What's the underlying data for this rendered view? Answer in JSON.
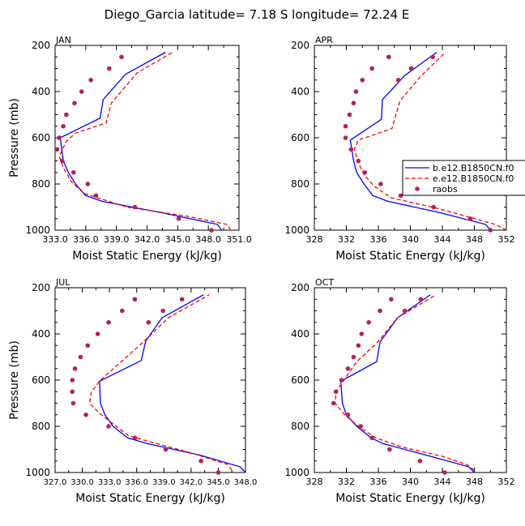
{
  "figure": {
    "title": "Diego_Garcia   latitude=  7.18 S  longitude=  72.24 E",
    "colors": {
      "model_b": "#0000ff",
      "model_e": "#ff0000",
      "obs": "#b2225a"
    }
  },
  "chart_data": [
    {
      "type": "line",
      "panel_label": "JAN",
      "xlabel": "Moist Static Energy (kJ/kg)",
      "ylabel": "Pressure (mb)",
      "xlim": [
        333.0,
        351.0
      ],
      "xticks": [
        333.0,
        336.0,
        339.0,
        342.0,
        345.0,
        348.0,
        351.0
      ],
      "xticklabels": [
        "333.0",
        "336.0",
        "339.0",
        "342.0",
        "345.0",
        "348.0",
        "351.0"
      ],
      "ylim": [
        200,
        1000
      ],
      "yticks": [
        200,
        400,
        600,
        800,
        1000
      ],
      "y_inverted": true,
      "series": [
        {
          "name": "b.e12.B1850CN.f0",
          "style": "solid",
          "color": "#0000ff",
          "x": [
            349.3,
            348.9,
            343.5,
            337.6,
            336.0,
            335.0,
            334.3,
            333.8,
            333.5,
            337.4,
            337.7,
            339.9,
            343.8
          ],
          "y": [
            1000,
            975,
            925,
            875,
            850,
            800,
            750,
            700,
            600,
            515,
            435,
            325,
            230
          ]
        },
        {
          "name": "e.e12.B1850CN.f0",
          "style": "dashed",
          "color": "#ff0000",
          "x": [
            350.2,
            349.8,
            346.0,
            340.0,
            335.8,
            334.6,
            333.8,
            333.4,
            334.1,
            335.0,
            338.0,
            338.5,
            341.0,
            344.5
          ],
          "y": [
            1000,
            975,
            940,
            900,
            840,
            790,
            730,
            680,
            615,
            580,
            535,
            450,
            320,
            230
          ]
        },
        {
          "name": "raobs",
          "style": "marker",
          "color": "#b2225a",
          "x": [
            348.3,
            345.1,
            340.8,
            337.0,
            336.2,
            334.8,
            333.7,
            333.2,
            333.4,
            333.8,
            334.1,
            334.9,
            335.6,
            336.5,
            338.3,
            339.5
          ],
          "y": [
            1000,
            950,
            900,
            850,
            800,
            750,
            700,
            650,
            600,
            550,
            500,
            450,
            400,
            350,
            300,
            250
          ]
        }
      ]
    },
    {
      "type": "line",
      "panel_label": "APR",
      "xlabel": "Moist Static Energy (kJ/kg)",
      "ylabel": "",
      "xlim": [
        328,
        352
      ],
      "xticks": [
        328,
        332,
        336,
        340,
        344,
        348,
        352
      ],
      "xticklabels": [
        "328",
        "332",
        "336",
        "340",
        "344",
        "348",
        "352"
      ],
      "ylim": [
        200,
        1000
      ],
      "yticks": [
        200,
        400,
        600,
        800,
        1000
      ],
      "y_inverted": true,
      "series": [
        {
          "name": "b.e12.B1850CN.f0",
          "style": "solid",
          "color": "#0000ff",
          "x": [
            350.0,
            349.4,
            343.8,
            337.2,
            335.3,
            334.2,
            333.3,
            332.9,
            332.5,
            336.4,
            336.5,
            339.3,
            343.3
          ],
          "y": [
            1000,
            975,
            925,
            875,
            850,
            800,
            750,
            700,
            610,
            520,
            435,
            330,
            230
          ]
        },
        {
          "name": "e.e12.B1850CN.f0",
          "style": "dashed",
          "color": "#ff0000",
          "x": [
            352.0,
            350.6,
            347.0,
            343.3,
            337.6,
            335.5,
            334.2,
            333.4,
            333.0,
            333.5,
            337.7,
            338.7,
            341.4,
            344.4
          ],
          "y": [
            1000,
            975,
            940,
            905,
            860,
            810,
            760,
            700,
            650,
            610,
            560,
            440,
            330,
            230
          ]
        },
        {
          "name": "raobs",
          "style": "marker",
          "color": "#b2225a",
          "x": [
            350.0,
            347.5,
            342.9,
            338.8,
            336.3,
            334.3,
            333.5,
            332.6,
            331.9,
            331.9,
            332.4,
            332.9,
            333.2,
            334.0,
            335.2,
            337.3,
            338.5,
            340.1,
            342.8
          ],
          "y": [
            1000,
            950,
            900,
            850,
            800,
            750,
            700,
            650,
            600,
            550,
            500,
            450,
            400,
            350,
            300,
            250,
            350,
            300,
            250
          ]
        }
      ]
    },
    {
      "type": "line",
      "panel_label": "JUL",
      "xlabel": "Moist Static Energy (kJ/kg)",
      "ylabel": "Pressure (mb)",
      "xlim": [
        327.0,
        348.0
      ],
      "xticks": [
        327.0,
        330.0,
        333.0,
        336.0,
        339.0,
        342.0,
        345.0,
        348.0
      ],
      "xticklabels": [
        "327.0",
        "330.0",
        "333.0",
        "336.0",
        "339.0",
        "342.0",
        "345.0",
        "348.0"
      ],
      "ylim": [
        200,
        1000
      ],
      "yticks": [
        200,
        400,
        600,
        800,
        1000
      ],
      "y_inverted": true,
      "series": [
        {
          "name": "b.e12.B1850CN.f0",
          "style": "solid",
          "color": "#0000ff",
          "x": [
            348.0,
            347.4,
            343.0,
            337.2,
            335.0,
            333.4,
            332.5,
            332.0,
            331.9,
            336.5,
            337.0,
            338.8,
            343.4
          ],
          "y": [
            1000,
            975,
            925,
            875,
            850,
            800,
            750,
            700,
            605,
            515,
            430,
            330,
            230
          ]
        },
        {
          "name": "e.e12.B1850CN.f0",
          "style": "dashed",
          "color": "#ff0000",
          "x": [
            346.5,
            346.0,
            342.0,
            337.3,
            335.1,
            333.4,
            331.8,
            330.8,
            331.0,
            332.0,
            336.6,
            339.5,
            344.0
          ],
          "y": [
            990,
            965,
            915,
            865,
            840,
            790,
            740,
            700,
            650,
            600,
            440,
            330,
            230
          ]
        },
        {
          "name": "raobs",
          "style": "marker",
          "color": "#b2225a",
          "x": [
            345.0,
            343.1,
            339.2,
            335.8,
            332.9,
            330.4,
            329.0,
            328.9,
            328.9,
            329.2,
            329.8,
            330.6,
            331.7,
            332.9,
            334.4,
            335.8,
            337.3,
            338.9,
            341.0
          ],
          "y": [
            1000,
            950,
            900,
            850,
            800,
            750,
            700,
            650,
            600,
            550,
            500,
            450,
            400,
            350,
            300,
            250,
            350,
            300,
            250
          ]
        }
      ]
    },
    {
      "type": "line",
      "panel_label": "OCT",
      "xlabel": "Moist Static Energy (kJ/kg)",
      "ylabel": "",
      "xlim": [
        328,
        352
      ],
      "xticks": [
        328,
        332,
        336,
        340,
        344,
        348,
        352
      ],
      "xticklabels": [
        "328",
        "332",
        "336",
        "340",
        "344",
        "348",
        "352"
      ],
      "ylim": [
        200,
        1000
      ],
      "yticks": [
        200,
        400,
        600,
        800,
        1000
      ],
      "y_inverted": true,
      "series": [
        {
          "name": "b.e12.B1850CN.f0",
          "style": "solid",
          "color": "#0000ff",
          "x": [
            348.0,
            347.3,
            342.0,
            336.6,
            335.1,
            333.3,
            332.0,
            331.5,
            331.3,
            335.8,
            336.2,
            338.4,
            342.5
          ],
          "y": [
            1000,
            975,
            925,
            875,
            850,
            800,
            750,
            700,
            605,
            520,
            435,
            330,
            230
          ]
        },
        {
          "name": "e.e12.B1850CN.f0",
          "style": "dashed",
          "color": "#ff0000",
          "x": [
            348.0,
            347.0,
            344.0,
            339.0,
            335.7,
            333.5,
            331.8,
            330.6,
            330.7,
            331.7,
            333.3,
            335.8,
            338.4,
            343.2
          ],
          "y": [
            990,
            965,
            930,
            890,
            850,
            800,
            750,
            700,
            650,
            600,
            520,
            440,
            330,
            230
          ]
        },
        {
          "name": "raobs",
          "style": "marker",
          "color": "#b2225a",
          "x": [
            344.3,
            341.2,
            337.4,
            335.2,
            333.8,
            332.2,
            330.4,
            330.7,
            331.4,
            332.2,
            332.9,
            333.5,
            333.9,
            334.8,
            336.2,
            337.6,
            339.3,
            341.3
          ],
          "y": [
            1000,
            950,
            900,
            850,
            800,
            750,
            700,
            650,
            600,
            550,
            500,
            450,
            400,
            350,
            300,
            250,
            300,
            250
          ]
        }
      ]
    }
  ],
  "legend": {
    "entries": [
      {
        "label": "b.e12.B1850CN.f0",
        "style": "solid",
        "color": "#0000ff"
      },
      {
        "label": "e.e12.B1850CN.f0",
        "style": "dashed",
        "color": "#ff0000"
      },
      {
        "label": "raobs",
        "style": "marker",
        "color": "#b2225a"
      }
    ]
  }
}
